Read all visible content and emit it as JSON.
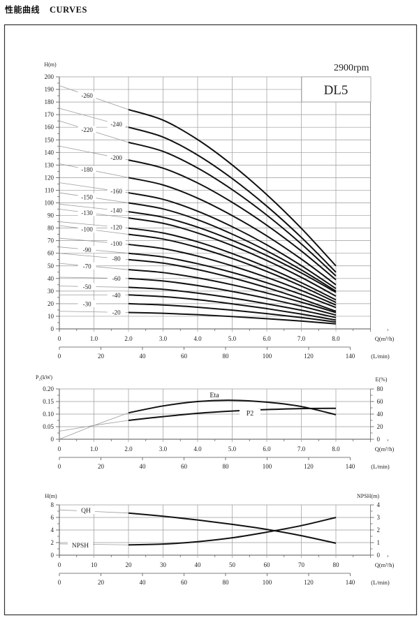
{
  "header": {
    "title_cn": "性能曲线",
    "title_en": "CURVES"
  },
  "speed": "2900rpm",
  "model": "DL5",
  "chart_data": [
    {
      "type": "line",
      "ylabel": "H(m)",
      "xlabel": "Q(m³/h)",
      "x2label": "(L/min)",
      "xlim": [
        0,
        9
      ],
      "ylim": [
        0,
        200
      ],
      "x2lim": [
        0,
        140
      ],
      "grid": true,
      "xtick_labels": [
        "0",
        "1.0",
        "2.0",
        "3.0",
        "4.0",
        "5.0",
        "6.0",
        "7.0",
        "8.0"
      ],
      "x2tick_labels": [
        "0",
        "20",
        "40",
        "60",
        "80",
        "100",
        "120",
        "140"
      ],
      "ytick_labels": [
        "0",
        "10",
        "20",
        "30",
        "40",
        "50",
        "60",
        "70",
        "80",
        "90",
        "100",
        "110",
        "120",
        "130",
        "140",
        "150",
        "160",
        "170",
        "180",
        "190",
        "200"
      ],
      "x": [
        0,
        2,
        3,
        4,
        5,
        6,
        7,
        8
      ],
      "series": [
        {
          "name": "-260",
          "y": [
            193,
            174,
            165.6,
            150.2,
            130.1,
            106.5,
            79.8,
            50
          ]
        },
        {
          "name": "-240",
          "y": [
            175,
            160,
            152.2,
            137.9,
            119.3,
            97.4,
            72.6,
            45
          ]
        },
        {
          "name": "-220",
          "y": [
            165,
            148,
            140.8,
            127.6,
            110.5,
            90.3,
            67.4,
            42
          ]
        },
        {
          "name": "-200",
          "y": [
            145,
            134,
            127.5,
            115.8,
            100.4,
            82.3,
            61.8,
            39
          ]
        },
        {
          "name": "-180",
          "y": [
            131,
            120,
            114.2,
            103.7,
            89.9,
            73.8,
            55.4,
            35
          ]
        },
        {
          "name": "-160",
          "y": [
            116,
            108,
            102.8,
            93.4,
            81.1,
            66.7,
            50.2,
            32
          ]
        },
        {
          "name": "-150",
          "y": [
            108,
            100,
            95.2,
            86.6,
            75.2,
            61.9,
            46.8,
            30
          ]
        },
        {
          "name": "-140",
          "y": [
            99,
            93,
            88.6,
            80.7,
            70.3,
            58.2,
            44.4,
            29
          ]
        },
        {
          "name": "-130",
          "y": [
            95,
            88,
            83.8,
            76.1,
            66.1,
            54.3,
            40.9,
            26
          ]
        },
        {
          "name": "-120",
          "y": [
            85,
            80,
            76.1,
            69.1,
            59.8,
            49.0,
            36.7,
            23
          ]
        },
        {
          "name": "-100",
          "y": [
            82,
            75,
            71.3,
            64.6,
            55.9,
            45.6,
            34.0,
            21
          ]
        },
        {
          "name": "-100",
          "y": [
            72,
            67,
            63.7,
            57.8,
            50.0,
            40.9,
            30.5,
            19
          ]
        },
        {
          "name": "-90",
          "y": [
            65,
            60,
            57.1,
            51.7,
            44.8,
            36.6,
            27.3,
            17
          ]
        },
        {
          "name": "-80",
          "y": [
            60,
            55,
            52.2,
            47.1,
            40.5,
            32.7,
            23.8,
            14
          ]
        },
        {
          "name": "-70",
          "y": [
            52,
            47,
            44.7,
            40.5,
            35.0,
            28.5,
            21.2,
            13
          ]
        },
        {
          "name": "-60",
          "y": [
            41,
            40,
            38.0,
            34.4,
            29.7,
            24.2,
            18.0,
            11
          ]
        },
        {
          "name": "-50",
          "y": [
            34,
            33,
            31.4,
            28.4,
            24.5,
            19.9,
            14.8,
            9
          ]
        },
        {
          "name": "-40",
          "y": [
            27,
            27,
            25.6,
            23.2,
            19.9,
            16.1,
            11.8,
            7
          ]
        },
        {
          "name": "-30",
          "y": [
            20,
            20,
            19.0,
            17.2,
            14.9,
            12.1,
            9.0,
            5.5
          ]
        },
        {
          "name": "-20",
          "y": [
            14,
            13,
            12.4,
            11.3,
            9.8,
            8.1,
            6.2,
            4
          ]
        }
      ]
    },
    {
      "type": "line",
      "ylabel": "P₂(kW)",
      "y2label": "E(%)",
      "xlabel": "Q(m³/h)",
      "x2label": "(L/min)",
      "xlim": [
        0,
        9
      ],
      "ylim": [
        0,
        0.2
      ],
      "y2lim": [
        0,
        80
      ],
      "x2lim": [
        0,
        140
      ],
      "grid": true,
      "xtick_labels": [
        "0",
        "1.0",
        "2.0",
        "3.0",
        "4.0",
        "5.0",
        "6.0",
        "7.0",
        "8.0"
      ],
      "x2tick_labels": [
        "0",
        "20",
        "40",
        "60",
        "80",
        "100",
        "120",
        "140"
      ],
      "ytick_labels": [
        "0",
        "0.05",
        "0.10",
        "0.15",
        "0.20"
      ],
      "y2tick_labels": [
        "0",
        "20",
        "40",
        "60",
        "80"
      ],
      "x": [
        0,
        1,
        2,
        3,
        4,
        5,
        6,
        7,
        8
      ],
      "series": [
        {
          "name": "Eta",
          "axis": "right",
          "y": [
            0,
            22,
            42,
            53,
            60,
            62,
            59,
            52,
            39
          ]
        },
        {
          "name": "P2",
          "axis": "left",
          "y": [
            0.032,
            0.055,
            0.075,
            0.09,
            0.103,
            0.112,
            0.118,
            0.122,
            0.123
          ]
        }
      ]
    },
    {
      "type": "line",
      "ylabel": "H(m)",
      "y2label": "NPSH(m)",
      "xlabel": "Q(m³/h)",
      "x2label": "(L/min)",
      "xlim": [
        0,
        90
      ],
      "ylim": [
        0,
        8
      ],
      "y2lim": [
        0,
        4
      ],
      "x2lim": [
        0,
        140
      ],
      "grid": true,
      "xtick_labels": [
        "0",
        "10",
        "20",
        "30",
        "40",
        "50",
        "60",
        "70",
        "80"
      ],
      "x2tick_labels": [
        "0",
        "20",
        "40",
        "60",
        "80",
        "100",
        "120",
        "140"
      ],
      "ytick_labels": [
        "0",
        "2",
        "4",
        "6",
        "8"
      ],
      "y2tick_labels": [
        "0",
        "1",
        "2",
        "3",
        "4"
      ],
      "x": [
        0,
        20,
        30,
        40,
        50,
        60,
        70,
        80
      ],
      "series": [
        {
          "name": "QH",
          "axis": "left",
          "y": [
            7.2,
            6.7,
            6.2,
            5.6,
            4.9,
            4.1,
            3.1,
            1.9
          ]
        },
        {
          "name": "NPSH",
          "axis": "right",
          "y": [
            0.9,
            0.82,
            0.88,
            1.07,
            1.38,
            1.83,
            2.35,
            3.0
          ]
        }
      ]
    }
  ]
}
